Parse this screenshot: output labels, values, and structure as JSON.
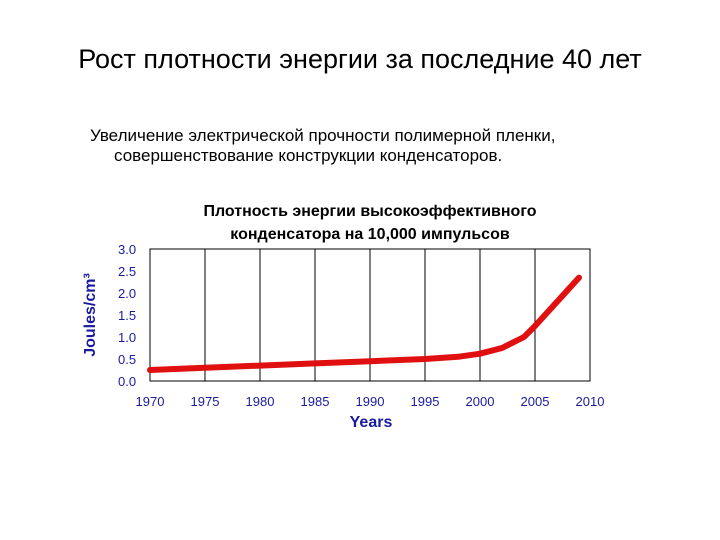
{
  "slide": {
    "title": "Рост плотности энергии за последние 40 лет",
    "subtitle_line1": "Увеличение электрической прочности полимерной пленки,",
    "subtitle_line2": "совершенствование конструкции конденсаторов."
  },
  "chart_data": {
    "type": "line",
    "title_line1": "Плотность энергии высокоэффективного",
    "title_line2": "конденсатора на 10,000 импульсов",
    "xlabel": "Years",
    "ylabel": "Joules/cm³",
    "xlim": [
      1970,
      2010
    ],
    "ylim": [
      0.0,
      3.0
    ],
    "x_ticks": [
      "1970",
      "1975",
      "1980",
      "1985",
      "1990",
      "1995",
      "2000",
      "2005",
      "2010"
    ],
    "y_ticks": [
      "0.0",
      "0.5",
      "1.0",
      "1.5",
      "2.0",
      "2.5",
      "3.0"
    ],
    "grid": "vertical",
    "series": [
      {
        "color": "#e01010",
        "x": [
          1970,
          1975,
          1980,
          1985,
          1990,
          1995,
          1998,
          2000,
          2002,
          2004,
          2005,
          2007,
          2009
        ],
        "y": [
          0.25,
          0.3,
          0.35,
          0.4,
          0.45,
          0.5,
          0.55,
          0.62,
          0.75,
          1.0,
          1.25,
          1.8,
          2.35
        ]
      }
    ]
  }
}
